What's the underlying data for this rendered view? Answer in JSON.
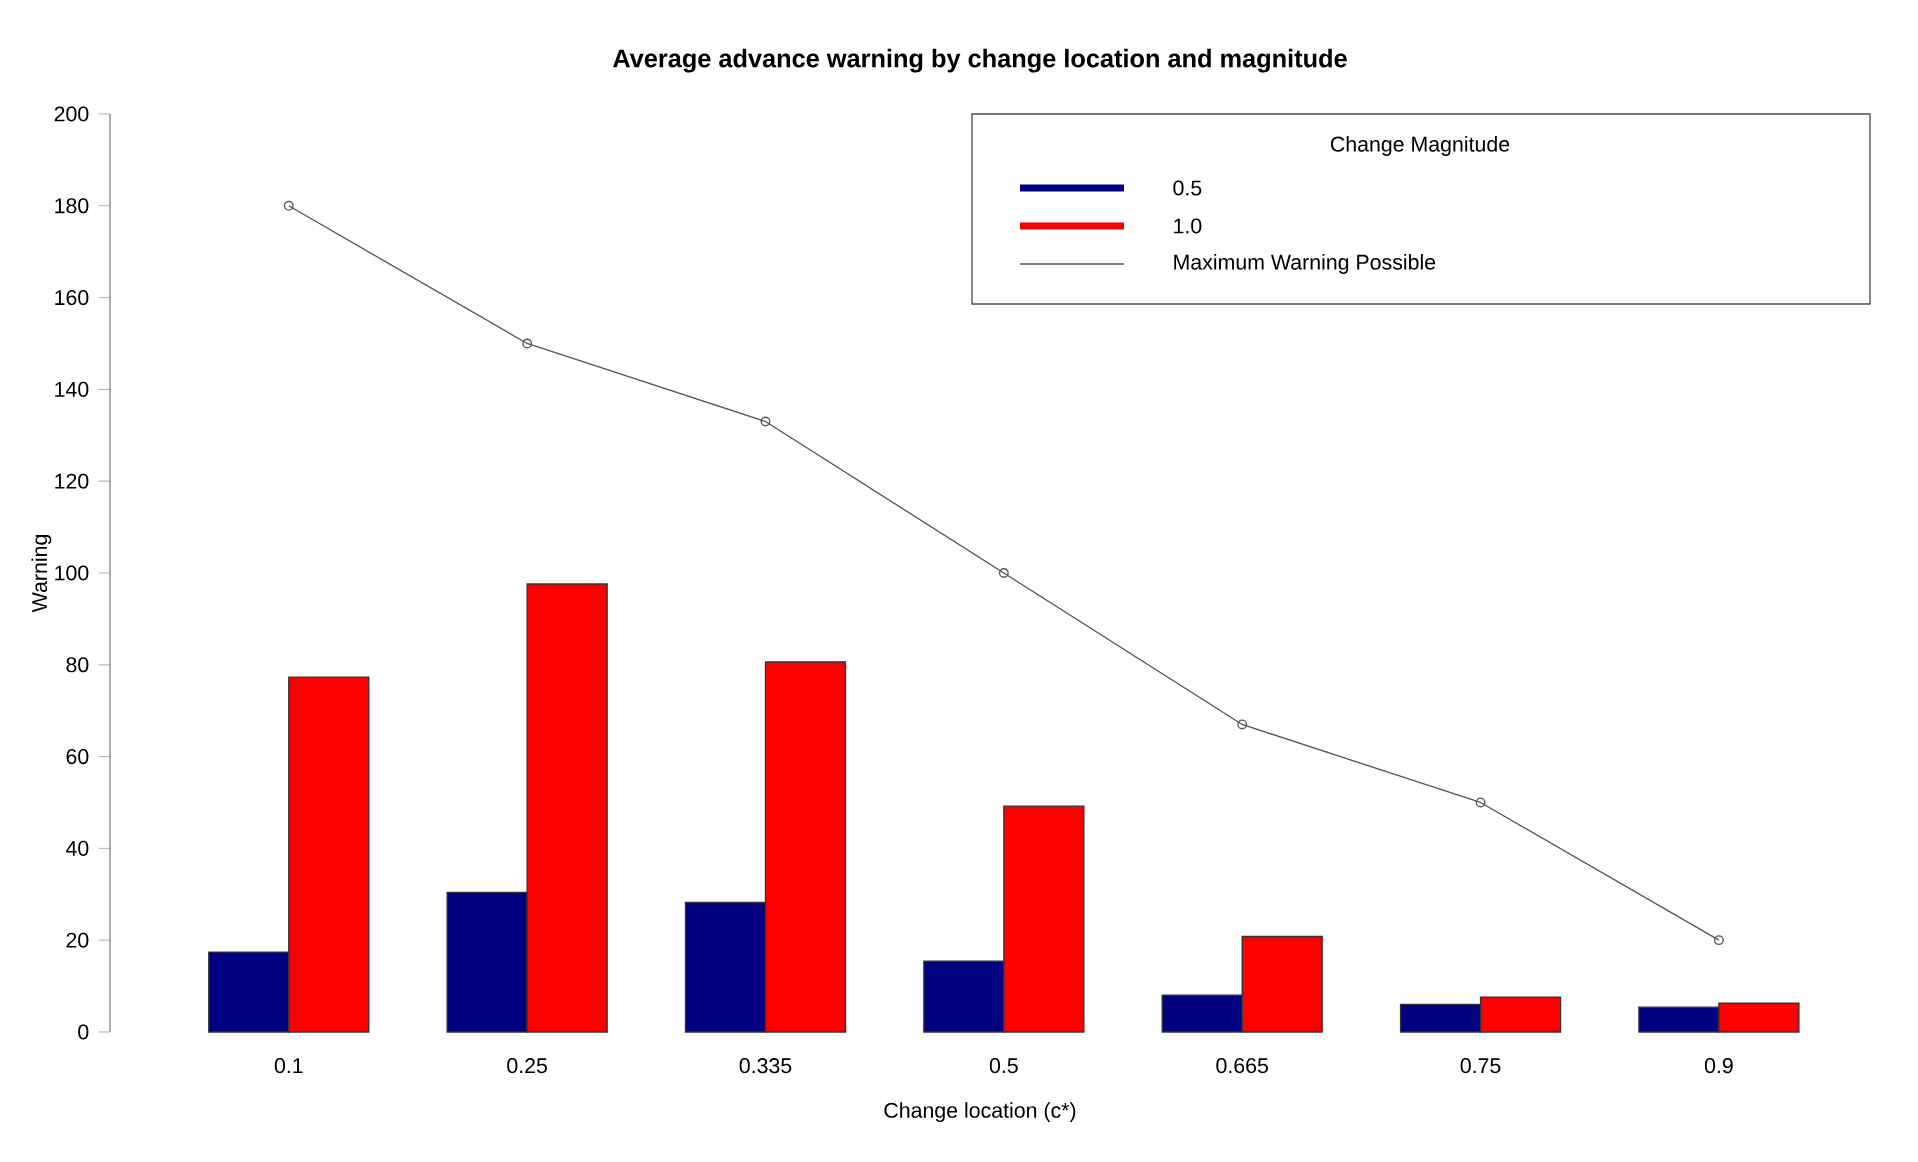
{
  "chart_data": {
    "type": "bar",
    "title": "Average advance warning by change location and magnitude",
    "xlabel": "Change location (c*)",
    "ylabel": "Warning",
    "legend_title": "Change Magnitude",
    "categories": [
      "0.1",
      "0.25",
      "0.335",
      "0.5",
      "0.665",
      "0.75",
      "0.9"
    ],
    "series": [
      {
        "name": "0.5",
        "color": "#000080",
        "values": [
          17.4,
          30.4,
          28.2,
          15.4,
          8.0,
          6.0,
          5.4
        ]
      },
      {
        "name": "1.0",
        "color": "#ff0000",
        "values": [
          77.3,
          97.6,
          80.6,
          49.2,
          20.8,
          7.6,
          6.3
        ]
      },
      {
        "name": "Maximum Warning Possible",
        "type": "line",
        "color": "#555555",
        "values": [
          180,
          150,
          133,
          100,
          67,
          50,
          20
        ]
      }
    ],
    "ylim": [
      0,
      200
    ],
    "yticks": [
      0,
      20,
      40,
      60,
      80,
      100,
      120,
      140,
      160,
      180,
      200
    ],
    "legend": "top right",
    "marker": "circle",
    "line_style": "solid"
  }
}
